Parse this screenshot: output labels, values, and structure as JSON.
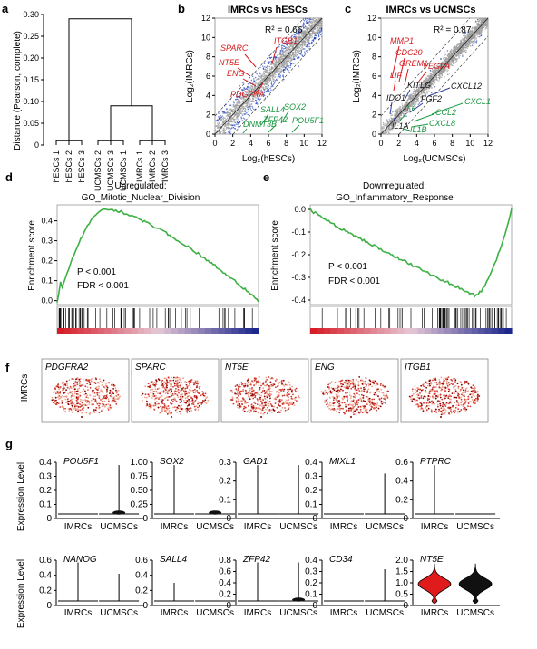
{
  "panels": {
    "a": "a",
    "b": "b",
    "c": "c",
    "d": "d",
    "e": "e",
    "f": "f",
    "g": "g"
  },
  "panel_a": {
    "ylabel": "Distance (Pearson, complete)",
    "yticks": [
      "0",
      "0.05",
      "0.10",
      "0.15",
      "0.20",
      "0.25",
      "0.30"
    ],
    "leaves": [
      "hESCs 1",
      "hESCs 2",
      "hESCs 3",
      "UCMSCs 2",
      "UCMSCs 3",
      "UCMSCs 1",
      "IMRCs 1",
      "IMRCs 2",
      "IMRCs 3"
    ],
    "chart_data": {
      "type": "dendrogram",
      "ylim": [
        0,
        0.3
      ],
      "merge_heights": {
        "hESCs": 0.01,
        "UCMSCs": 0.01,
        "IMRCs": 0.01,
        "UCMSCs+IMRCs": 0.09,
        "root": 0.29
      }
    }
  },
  "panel_b": {
    "title": "IMRCs vs hESCs",
    "r2": "R² = 0.66",
    "xlabel": "Log₂(hESCs)",
    "ylabel": "Log₂(IMRCs)",
    "ticks": [
      "0",
      "2",
      "4",
      "6",
      "8",
      "10",
      "12"
    ],
    "genes_up": [
      "SPARC",
      "ITGB1",
      "NT5E",
      "ENG",
      "PDGFRA"
    ],
    "genes_down": [
      "SALL4",
      "SOX2",
      "ZFP42",
      "POU5F1",
      "DNMT3B"
    ]
  },
  "panel_c": {
    "title": "IMRCs vs UCMSCs",
    "r2": "R² = 0.87",
    "xlabel": "Log₂(UCMSCs)",
    "ylabel": "Log₂(IMRCs)",
    "ticks": [
      "0",
      "2",
      "4",
      "6",
      "8",
      "10",
      "12"
    ],
    "genes_up": [
      "MMP1",
      "CDC20",
      "GREM1",
      "LIF",
      "VEGFA"
    ],
    "genes_neutral": [
      "KITLG",
      "CXCL12",
      "IDO1",
      "FGF2",
      "IL1A"
    ],
    "genes_down": [
      "CXCL1",
      "IL6",
      "CCL2",
      "CXCL8",
      "IL1B"
    ]
  },
  "panel_d": {
    "title1": "Upregulated:",
    "title2": "GO_Mitotic_Nuclear_Division",
    "ylabel": "Enrichment score",
    "yticks": [
      "0.4",
      "0.3",
      "0.2",
      "0.1",
      "0.0"
    ],
    "p": "P < 0.001",
    "fdr": "FDR < 0.001"
  },
  "panel_e": {
    "title1": "Downregulated:",
    "title2": "GO_Inflammatory_Response",
    "ylabel": "Enrichment score",
    "yticks": [
      "0.0",
      "-0.1",
      "-0.2",
      "-0.3",
      "-0.4"
    ],
    "p": "P < 0.001",
    "fdr": "FDR < 0.001"
  },
  "panel_f": {
    "row_label": "IMRCs",
    "genes": [
      "PDGFRA2",
      "SPARC",
      "NT5E",
      "ENG",
      "ITGB1"
    ]
  },
  "panel_g": {
    "ylabel": "Expression Level",
    "groups": [
      "IMRCs",
      "UCMSCs"
    ],
    "row1": [
      {
        "gene": "POU5F1",
        "ticks": [
          "0",
          "0.1",
          "0.2",
          "0.3",
          "0.4"
        ],
        "ymax": 0.4
      },
      {
        "gene": "SOX2",
        "ticks": [
          "0",
          "0.25",
          "0.50",
          "0.75",
          "1.00"
        ],
        "ymax": 1.0
      },
      {
        "gene": "GAD1",
        "ticks": [
          "0",
          "0.1",
          "0.2",
          "0.3"
        ],
        "ymax": 0.3
      },
      {
        "gene": "MIXL1",
        "ticks": [
          "0",
          "0.1",
          "0.2",
          "0.3",
          "0.4"
        ],
        "ymax": 0.4
      },
      {
        "gene": "PTPRC",
        "ticks": [
          "0",
          "0.2",
          "0.4",
          "0.6"
        ],
        "ymax": 0.6
      }
    ],
    "row2": [
      {
        "gene": "NANOG",
        "ticks": [
          "0",
          "0.2",
          "0.4",
          "0.6"
        ],
        "ymax": 0.6
      },
      {
        "gene": "SALL4",
        "ticks": [
          "0",
          "0.2",
          "0.4",
          "0.6"
        ],
        "ymax": 0.6
      },
      {
        "gene": "ZFP42",
        "ticks": [
          "0",
          "0.2",
          "0.4",
          "0.6",
          "0.8"
        ],
        "ymax": 0.8
      },
      {
        "gene": "CD34",
        "ticks": [
          "0",
          "0.1",
          "0.2",
          "0.3",
          "0.4"
        ],
        "ymax": 0.4
      },
      {
        "gene": "NT5E",
        "ticks": [
          "0",
          "0.5",
          "1.0",
          "1.5",
          "2.0"
        ],
        "ymax": 2.0
      }
    ]
  },
  "colors": {
    "red": "#d7191c",
    "green": "#1a9641",
    "blue": "#2c3e99",
    "gsea_line": "#3cb043",
    "scatter_blue": "#1f3fbf"
  }
}
